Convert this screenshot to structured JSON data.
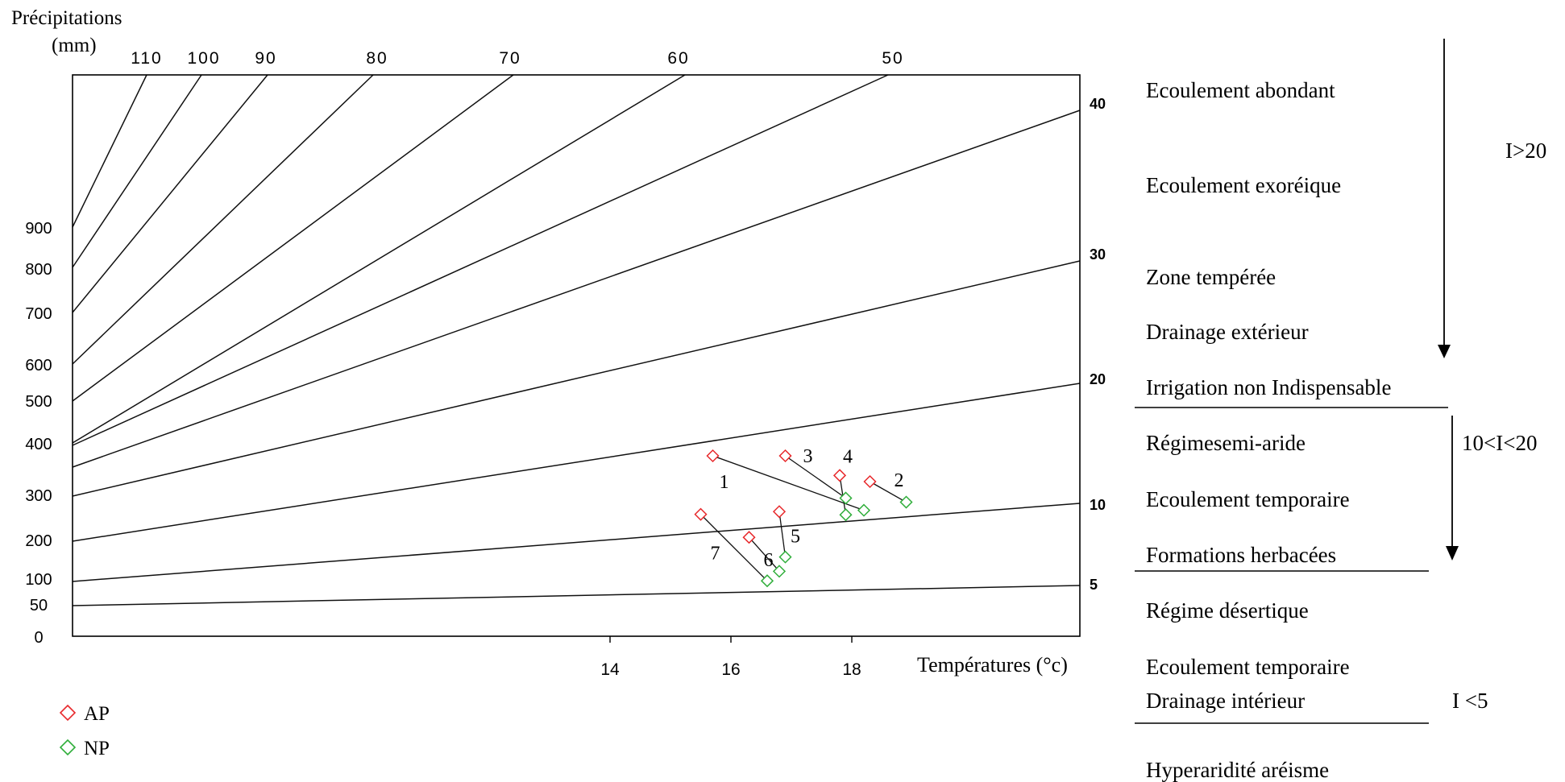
{
  "chart_data": {
    "type": "scatter",
    "title": "",
    "ylabel_line1": "Précipitations",
    "ylabel_line2": "(mm)",
    "xlabel": "Températures (°c)",
    "y_ticks": [
      "900",
      "800",
      "700",
      "600",
      "500",
      "400",
      "300",
      "200",
      "100",
      "50",
      "0"
    ],
    "x_ticks": [
      "14",
      "16",
      "18"
    ],
    "top_ticks": [
      "110",
      "100",
      "90",
      "80",
      "70",
      "60",
      "50"
    ],
    "right_ticks": [
      "40",
      "30",
      "20",
      "10",
      "5"
    ],
    "legend": [
      {
        "label": "AP",
        "color": "#e8282b"
      },
      {
        "label": "NP",
        "color": "#2fae3a"
      }
    ],
    "stations": [
      {
        "label": "1",
        "ap": {
          "t": 15.7,
          "p": 375
        },
        "np": {
          "t": 18.2,
          "p": 265
        }
      },
      {
        "label": "2",
        "ap": {
          "t": 18.3,
          "p": 325
        },
        "np": {
          "t": 18.9,
          "p": 283
        }
      },
      {
        "label": "3",
        "ap": {
          "t": 16.9,
          "p": 375
        },
        "np": {
          "t": 17.9,
          "p": 292
        }
      },
      {
        "label": "4",
        "ap": {
          "t": 17.8,
          "p": 337
        },
        "np": {
          "t": 17.9,
          "p": 255
        }
      },
      {
        "label": "5",
        "ap": {
          "t": 16.8,
          "p": 262
        },
        "np": {
          "t": 16.9,
          "p": 155
        }
      },
      {
        "label": "6",
        "ap": {
          "t": 16.3,
          "p": 205
        },
        "np": {
          "t": 16.8,
          "p": 118
        }
      },
      {
        "label": "7",
        "ap": {
          "t": 15.5,
          "p": 256
        },
        "np": {
          "t": 16.6,
          "p": 95
        }
      }
    ]
  },
  "zones": [
    "Ecoulement abondant",
    "Ecoulement exoréique",
    "Zone tempérée",
    "Drainage extérieur",
    "Irrigation non Indispensable",
    "Régimesemi-aride",
    "Ecoulement temporaire",
    " Formations herbacées",
    "Régime désertique",
    "Ecoulement temporaire",
    "Drainage intérieur",
    "Hyperaridité aréisme"
  ],
  "indices": {
    "high": "I>20",
    "mid": "10<I<20",
    "low": "I <5"
  }
}
